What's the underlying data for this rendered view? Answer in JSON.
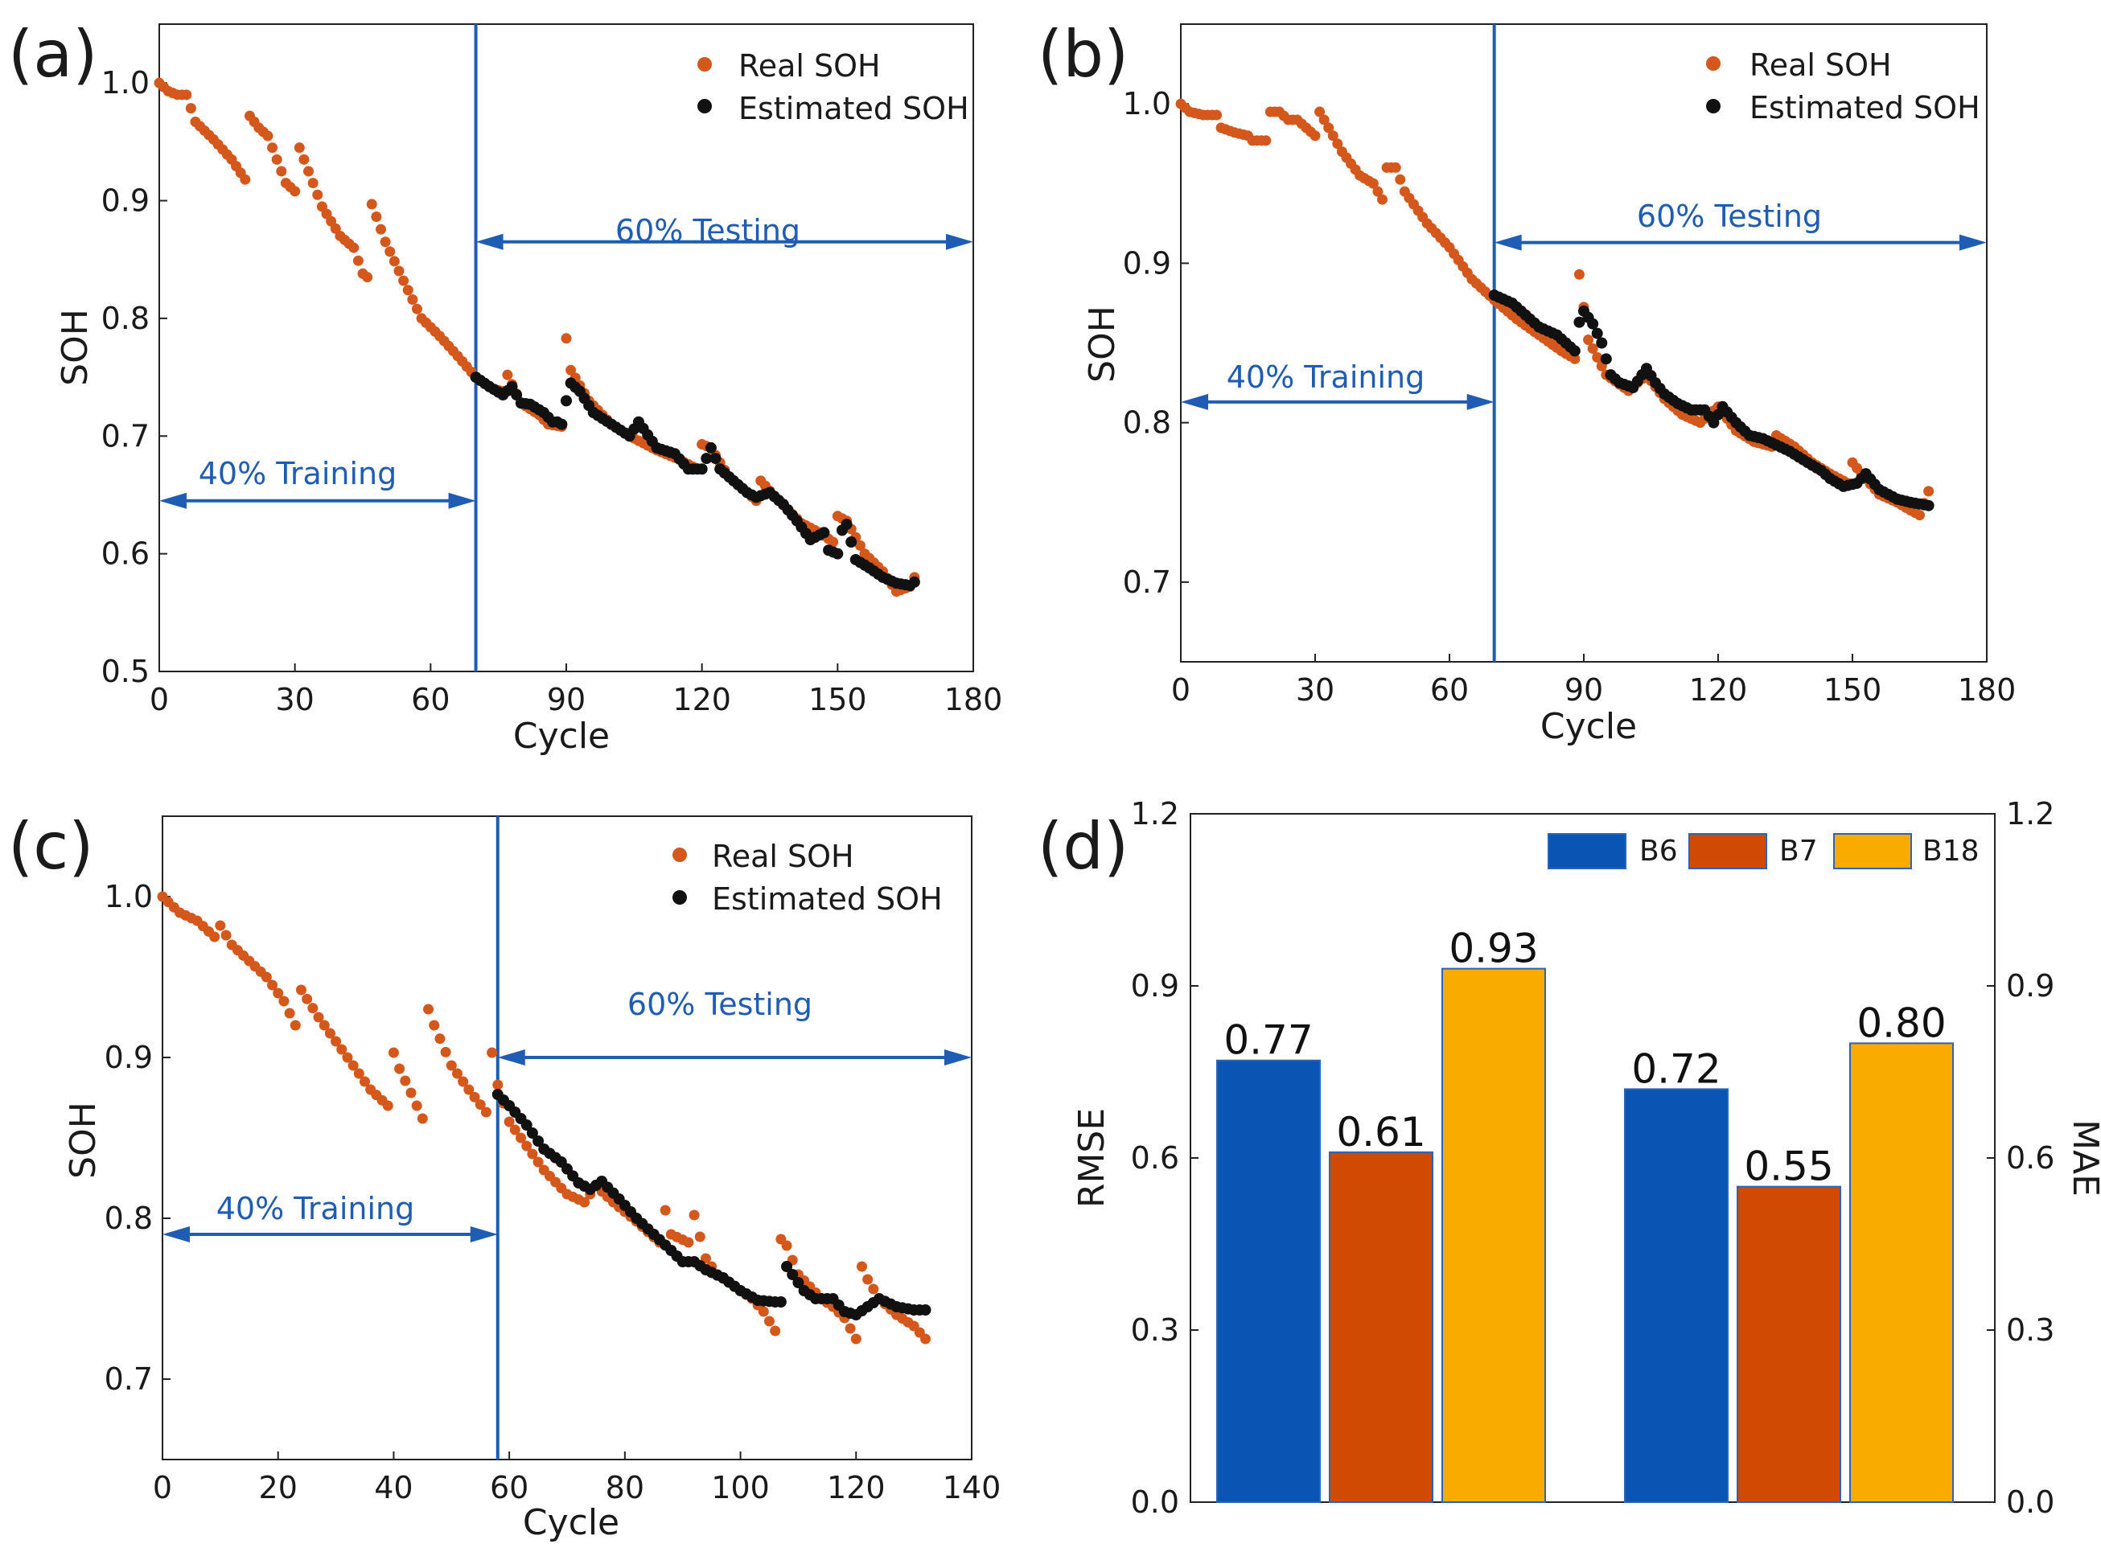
{
  "colors": {
    "real": "#d4571c",
    "estimated": "#111111",
    "split": "#1f5db5",
    "b6": "#0a54b4",
    "b7": "#d04a04",
    "b18": "#f9ab00",
    "bar_edge": "#2a64b8"
  },
  "chart_data": [
    {
      "type": "scatter",
      "panel": "(a)",
      "xlabel": "Cycle",
      "ylabel": "SOH",
      "xlim": [
        0,
        180
      ],
      "ylim": [
        0.5,
        1.05
      ],
      "xticks": [
        0,
        30,
        60,
        90,
        120,
        150,
        180
      ],
      "yticks": [
        0.5,
        0.6,
        0.7,
        0.8,
        0.9,
        1.0
      ],
      "xticklabels": [
        "0",
        "30",
        "60",
        "90",
        "120",
        "150",
        "180"
      ],
      "yticklabels": [
        "0.5",
        "0.6",
        "0.7",
        "0.8",
        "0.9",
        "1.0"
      ],
      "split_cycle": 70,
      "legend": [
        "Real SOH",
        "Estimated SOH"
      ],
      "annotations": {
        "training": "40% Training",
        "testing": "60% Testing",
        "training_y": 0.645,
        "testing_y": 0.865
      },
      "real_anchors": [
        [
          0,
          1.0
        ],
        [
          2,
          0.993
        ],
        [
          4,
          0.99
        ],
        [
          6,
          0.99
        ],
        [
          8,
          0.967
        ],
        [
          12,
          0.952
        ],
        [
          16,
          0.935
        ],
        [
          19,
          0.918
        ],
        [
          20,
          0.972
        ],
        [
          22,
          0.962
        ],
        [
          24,
          0.955
        ],
        [
          26,
          0.935
        ],
        [
          28,
          0.915
        ],
        [
          30,
          0.908
        ],
        [
          31,
          0.945
        ],
        [
          33,
          0.925
        ],
        [
          36,
          0.895
        ],
        [
          40,
          0.87
        ],
        [
          43,
          0.86
        ],
        [
          45,
          0.838
        ],
        [
          46,
          0.835
        ],
        [
          47,
          0.897
        ],
        [
          50,
          0.865
        ],
        [
          54,
          0.832
        ],
        [
          58,
          0.8
        ],
        [
          62,
          0.785
        ],
        [
          66,
          0.768
        ],
        [
          70,
          0.75
        ],
        [
          74,
          0.74
        ],
        [
          76,
          0.738
        ],
        [
          77,
          0.752
        ],
        [
          80,
          0.728
        ],
        [
          84,
          0.718
        ],
        [
          86,
          0.71
        ],
        [
          89,
          0.708
        ],
        [
          90,
          0.783
        ],
        [
          91,
          0.756
        ],
        [
          95,
          0.73
        ],
        [
          100,
          0.71
        ],
        [
          105,
          0.698
        ],
        [
          110,
          0.688
        ],
        [
          115,
          0.68
        ],
        [
          119,
          0.672
        ],
        [
          120,
          0.693
        ],
        [
          122,
          0.69
        ],
        [
          126,
          0.665
        ],
        [
          130,
          0.652
        ],
        [
          132,
          0.645
        ],
        [
          133,
          0.662
        ],
        [
          137,
          0.645
        ],
        [
          142,
          0.626
        ],
        [
          146,
          0.618
        ],
        [
          149,
          0.61
        ],
        [
          150,
          0.632
        ],
        [
          152,
          0.628
        ],
        [
          156,
          0.6
        ],
        [
          160,
          0.585
        ],
        [
          163,
          0.568
        ],
        [
          166,
          0.572
        ],
        [
          167,
          0.58
        ]
      ],
      "estimated_anchors": [
        [
          70,
          0.75
        ],
        [
          73,
          0.742
        ],
        [
          76,
          0.735
        ],
        [
          78,
          0.742
        ],
        [
          80,
          0.728
        ],
        [
          82,
          0.727
        ],
        [
          85,
          0.72
        ],
        [
          87,
          0.712
        ],
        [
          88,
          0.712
        ],
        [
          89,
          0.71
        ],
        [
          90,
          0.73
        ],
        [
          91,
          0.745
        ],
        [
          93,
          0.738
        ],
        [
          96,
          0.72
        ],
        [
          100,
          0.71
        ],
        [
          104,
          0.7
        ],
        [
          106,
          0.712
        ],
        [
          110,
          0.69
        ],
        [
          114,
          0.685
        ],
        [
          117,
          0.672
        ],
        [
          120,
          0.672
        ],
        [
          122,
          0.69
        ],
        [
          124,
          0.672
        ],
        [
          127,
          0.662
        ],
        [
          130,
          0.652
        ],
        [
          132,
          0.648
        ],
        [
          135,
          0.652
        ],
        [
          138,
          0.642
        ],
        [
          141,
          0.628
        ],
        [
          144,
          0.612
        ],
        [
          147,
          0.618
        ],
        [
          148,
          0.603
        ],
        [
          150,
          0.6
        ],
        [
          151,
          0.62
        ],
        [
          152,
          0.625
        ],
        [
          154,
          0.595
        ],
        [
          157,
          0.588
        ],
        [
          160,
          0.58
        ],
        [
          163,
          0.575
        ],
        [
          166,
          0.573
        ],
        [
          167,
          0.576
        ]
      ]
    },
    {
      "type": "scatter",
      "panel": "(b)",
      "xlabel": "Cycle",
      "ylabel": "SOH",
      "xlim": [
        0,
        180
      ],
      "ylim": [
        0.65,
        1.05
      ],
      "xticks": [
        0,
        30,
        60,
        90,
        120,
        150,
        180
      ],
      "yticks": [
        0.7,
        0.8,
        0.9,
        1.0
      ],
      "xticklabels": [
        "0",
        "30",
        "60",
        "90",
        "120",
        "150",
        "180"
      ],
      "yticklabels": [
        "0.7",
        "0.8",
        "0.9",
        "1.0"
      ],
      "split_cycle": 70,
      "legend": [
        "Real SOH",
        "Estimated SOH"
      ],
      "annotations": {
        "training": "40% Training",
        "testing": "60% Testing",
        "training_y": 0.813,
        "testing_y": 0.913
      },
      "real_anchors": [
        [
          0,
          1.0
        ],
        [
          2,
          0.995
        ],
        [
          5,
          0.993
        ],
        [
          8,
          0.993
        ],
        [
          9,
          0.985
        ],
        [
          12,
          0.982
        ],
        [
          15,
          0.98
        ],
        [
          16,
          0.977
        ],
        [
          19,
          0.977
        ],
        [
          20,
          0.995
        ],
        [
          22,
          0.995
        ],
        [
          24,
          0.99
        ],
        [
          26,
          0.99
        ],
        [
          28,
          0.985
        ],
        [
          30,
          0.98
        ],
        [
          31,
          0.995
        ],
        [
          33,
          0.985
        ],
        [
          36,
          0.97
        ],
        [
          40,
          0.955
        ],
        [
          43,
          0.95
        ],
        [
          45,
          0.94
        ],
        [
          46,
          0.96
        ],
        [
          48,
          0.96
        ],
        [
          50,
          0.945
        ],
        [
          55,
          0.925
        ],
        [
          60,
          0.91
        ],
        [
          65,
          0.89
        ],
        [
          70,
          0.877
        ],
        [
          75,
          0.865
        ],
        [
          80,
          0.855
        ],
        [
          85,
          0.845
        ],
        [
          88,
          0.84
        ],
        [
          89,
          0.893
        ],
        [
          91,
          0.852
        ],
        [
          95,
          0.83
        ],
        [
          100,
          0.82
        ],
        [
          104,
          0.83
        ],
        [
          108,
          0.815
        ],
        [
          112,
          0.805
        ],
        [
          116,
          0.8
        ],
        [
          120,
          0.81
        ],
        [
          124,
          0.795
        ],
        [
          128,
          0.788
        ],
        [
          132,
          0.785
        ],
        [
          133,
          0.792
        ],
        [
          137,
          0.785
        ],
        [
          141,
          0.775
        ],
        [
          145,
          0.768
        ],
        [
          149,
          0.762
        ],
        [
          150,
          0.775
        ],
        [
          152,
          0.768
        ],
        [
          156,
          0.755
        ],
        [
          160,
          0.75
        ],
        [
          163,
          0.745
        ],
        [
          165,
          0.742
        ],
        [
          167,
          0.757
        ]
      ],
      "estimated_anchors": [
        [
          70,
          0.88
        ],
        [
          74,
          0.875
        ],
        [
          78,
          0.865
        ],
        [
          80,
          0.86
        ],
        [
          84,
          0.855
        ],
        [
          86,
          0.85
        ],
        [
          88,
          0.845
        ],
        [
          89,
          0.863
        ],
        [
          90,
          0.87
        ],
        [
          92,
          0.862
        ],
        [
          94,
          0.85
        ],
        [
          96,
          0.83
        ],
        [
          98,
          0.825
        ],
        [
          101,
          0.822
        ],
        [
          104,
          0.834
        ],
        [
          106,
          0.825
        ],
        [
          108,
          0.818
        ],
        [
          111,
          0.812
        ],
        [
          114,
          0.808
        ],
        [
          117,
          0.808
        ],
        [
          119,
          0.8
        ],
        [
          121,
          0.81
        ],
        [
          124,
          0.8
        ],
        [
          127,
          0.792
        ],
        [
          130,
          0.79
        ],
        [
          133,
          0.786
        ],
        [
          136,
          0.782
        ],
        [
          140,
          0.775
        ],
        [
          143,
          0.77
        ],
        [
          145,
          0.765
        ],
        [
          148,
          0.76
        ],
        [
          151,
          0.762
        ],
        [
          153,
          0.768
        ],
        [
          156,
          0.758
        ],
        [
          160,
          0.752
        ],
        [
          163,
          0.75
        ],
        [
          167,
          0.748
        ]
      ]
    },
    {
      "type": "scatter",
      "panel": "(c)",
      "xlabel": "Cycle",
      "ylabel": "SOH",
      "xlim": [
        0,
        140
      ],
      "ylim": [
        0.65,
        1.05
      ],
      "xticks": [
        0,
        20,
        40,
        60,
        80,
        100,
        120,
        140
      ],
      "yticks": [
        0.7,
        0.8,
        0.9,
        1.0
      ],
      "xticklabels": [
        "0",
        "20",
        "40",
        "60",
        "80",
        "100",
        "120",
        "140"
      ],
      "yticklabels": [
        "0.7",
        "0.8",
        "0.9",
        "1.0"
      ],
      "split_cycle": 58,
      "legend": [
        "Real SOH",
        "Estimated SOH"
      ],
      "annotations": {
        "training": "40% Training",
        "testing": "60% Testing",
        "training_y": 0.79,
        "testing_y": 0.9
      },
      "real_anchors": [
        [
          0,
          1.0
        ],
        [
          3,
          0.99
        ],
        [
          6,
          0.985
        ],
        [
          9,
          0.975
        ],
        [
          10,
          0.982
        ],
        [
          12,
          0.97
        ],
        [
          15,
          0.96
        ],
        [
          18,
          0.95
        ],
        [
          21,
          0.935
        ],
        [
          23,
          0.92
        ],
        [
          24,
          0.942
        ],
        [
          27,
          0.925
        ],
        [
          30,
          0.91
        ],
        [
          33,
          0.895
        ],
        [
          36,
          0.88
        ],
        [
          39,
          0.87
        ],
        [
          40,
          0.903
        ],
        [
          41,
          0.893
        ],
        [
          43,
          0.878
        ],
        [
          45,
          0.862
        ],
        [
          46,
          0.93
        ],
        [
          47,
          0.92
        ],
        [
          50,
          0.895
        ],
        [
          53,
          0.88
        ],
        [
          56,
          0.866
        ],
        [
          57,
          0.903
        ],
        [
          58,
          0.883
        ],
        [
          60,
          0.86
        ],
        [
          63,
          0.845
        ],
        [
          66,
          0.83
        ],
        [
          70,
          0.815
        ],
        [
          73,
          0.81
        ],
        [
          75,
          0.82
        ],
        [
          78,
          0.81
        ],
        [
          82,
          0.798
        ],
        [
          86,
          0.785
        ],
        [
          87,
          0.805
        ],
        [
          88,
          0.79
        ],
        [
          91,
          0.785
        ],
        [
          92,
          0.802
        ],
        [
          94,
          0.775
        ],
        [
          96,
          0.765
        ],
        [
          100,
          0.755
        ],
        [
          102,
          0.75
        ],
        [
          104,
          0.742
        ],
        [
          106,
          0.73
        ],
        [
          107,
          0.787
        ],
        [
          108,
          0.783
        ],
        [
          110,
          0.765
        ],
        [
          114,
          0.75
        ],
        [
          116,
          0.745
        ],
        [
          118,
          0.738
        ],
        [
          120,
          0.725
        ],
        [
          121,
          0.77
        ],
        [
          122,
          0.762
        ],
        [
          124,
          0.75
        ],
        [
          127,
          0.74
        ],
        [
          130,
          0.733
        ],
        [
          132,
          0.725
        ]
      ],
      "estimated_anchors": [
        [
          58,
          0.877
        ],
        [
          60,
          0.87
        ],
        [
          63,
          0.858
        ],
        [
          66,
          0.843
        ],
        [
          69,
          0.835
        ],
        [
          72,
          0.822
        ],
        [
          74,
          0.818
        ],
        [
          76,
          0.823
        ],
        [
          79,
          0.812
        ],
        [
          82,
          0.8
        ],
        [
          85,
          0.79
        ],
        [
          88,
          0.78
        ],
        [
          90,
          0.773
        ],
        [
          92,
          0.773
        ],
        [
          94,
          0.768
        ],
        [
          97,
          0.763
        ],
        [
          100,
          0.755
        ],
        [
          103,
          0.749
        ],
        [
          106,
          0.748
        ],
        [
          107,
          0.748
        ],
        [
          108,
          0.77
        ],
        [
          109,
          0.765
        ],
        [
          111,
          0.755
        ],
        [
          113,
          0.75
        ],
        [
          116,
          0.75
        ],
        [
          118,
          0.742
        ],
        [
          120,
          0.74
        ],
        [
          122,
          0.745
        ],
        [
          124,
          0.75
        ],
        [
          127,
          0.745
        ],
        [
          130,
          0.743
        ],
        [
          132,
          0.743
        ]
      ]
    },
    {
      "type": "bar",
      "panel": "(d)",
      "ylabel": "RMSE",
      "y2label": "MAE",
      "ylim": [
        0,
        1.2
      ],
      "y2lim": [
        0,
        1.2
      ],
      "yticks": [
        0.0,
        0.3,
        0.6,
        0.9,
        1.2
      ],
      "yticklabels": [
        "0.0",
        "0.3",
        "0.6",
        "0.9",
        "1.2"
      ],
      "groups": [
        "RMSE",
        "MAE"
      ],
      "series": [
        {
          "name": "B6",
          "values": [
            0.77,
            0.72
          ],
          "labels": [
            "0.77",
            "0.72"
          ]
        },
        {
          "name": "B7",
          "values": [
            0.61,
            0.55
          ],
          "labels": [
            "0.61",
            "0.55"
          ]
        },
        {
          "name": "B18",
          "values": [
            0.93,
            0.8
          ],
          "labels": [
            "0.93",
            "0.80"
          ]
        }
      ]
    }
  ]
}
